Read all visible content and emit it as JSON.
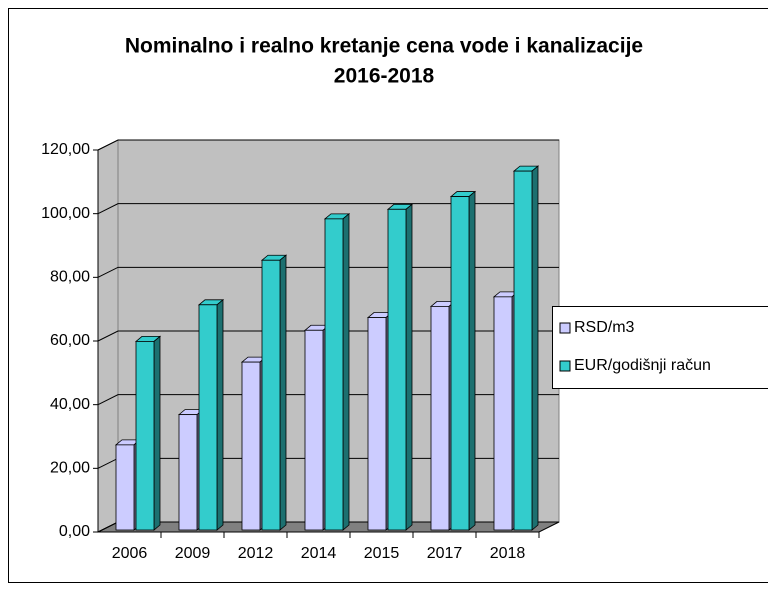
{
  "chart_data": {
    "type": "bar3d",
    "title": [
      "Nominalno i realno kretanje cena vode i kanalizacije",
      "2016-2018"
    ],
    "categories": [
      "2006",
      "2009",
      "2012",
      "2014",
      "2015",
      "2017",
      "2018"
    ],
    "series": [
      {
        "name": "RSD/m3",
        "color": "#ccccff",
        "values": [
          28,
          37.5,
          54,
          64,
          68,
          71.5,
          74.5
        ]
      },
      {
        "name": "EUR/godišnji račun",
        "color": "#33cccc",
        "values": [
          60.5,
          72,
          86,
          99,
          102,
          106,
          114
        ]
      }
    ],
    "ylim": [
      0,
      120
    ],
    "yticks": [
      {
        "value": 0,
        "label": "0,00"
      },
      {
        "value": 20,
        "label": "20,00"
      },
      {
        "value": 40,
        "label": "40,00"
      },
      {
        "value": 60,
        "label": "60,00"
      },
      {
        "value": 80,
        "label": "80,00"
      },
      {
        "value": 100,
        "label": "100,00"
      },
      {
        "value": 120,
        "label": "120,00"
      }
    ],
    "grid": true,
    "legend": "right"
  }
}
